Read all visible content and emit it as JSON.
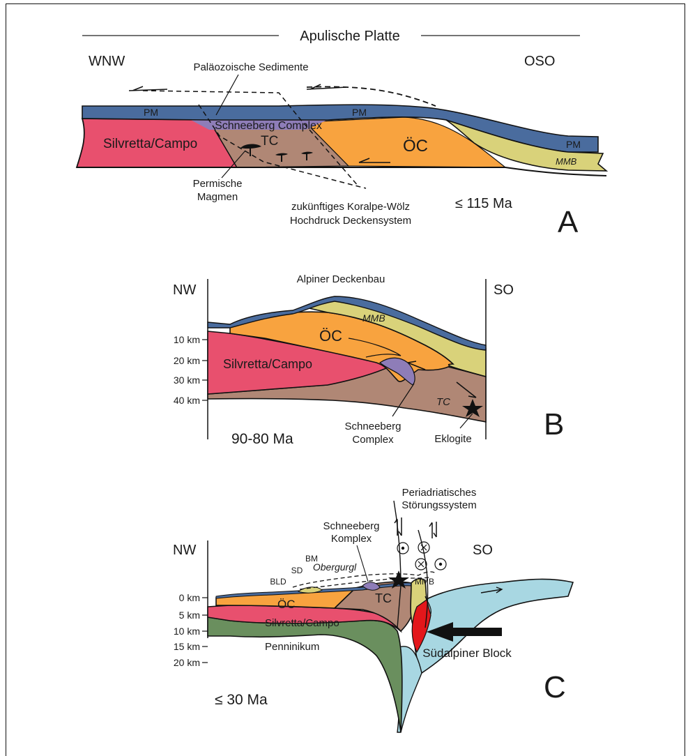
{
  "panel_a": {
    "plate_title": "Apulische Platte",
    "dir_left": "WNW",
    "dir_right": "OSO",
    "lbl_paleozoic": "Paläozoische Sedimente",
    "lbl_pm_left": "PM",
    "lbl_pm_mid": "PM",
    "lbl_pm_right": "PM",
    "lbl_schneeberg": "Schneeberg Complex",
    "lbl_silvretta": "Silvretta/Campo",
    "lbl_tc": "TC",
    "lbl_oc": "ÖC",
    "lbl_mmb": "MMB",
    "lbl_permische_1": "Permische",
    "lbl_permische_2": "Magmen",
    "lbl_future_1": "zukünftiges Koralpe-Wölz",
    "lbl_future_2": "Hochdruck Deckensystem",
    "age": "≤ 115 Ma",
    "letter": "A"
  },
  "panel_b": {
    "title": "Alpiner Deckenbau",
    "dir_left": "NW",
    "dir_right": "SO",
    "depths": [
      "10 km",
      "20 km",
      "30 km",
      "40 km"
    ],
    "lbl_mmb": "MMB",
    "lbl_oc": "ÖC",
    "lbl_silvretta": "Silvretta/Campo",
    "lbl_tc": "TC",
    "lbl_schneeberg_1": "Schneeberg",
    "lbl_schneeberg_2": "Complex",
    "lbl_eklogite": "Eklogite",
    "age": "90-80 Ma",
    "letter": "B"
  },
  "panel_c": {
    "dir_left": "NW",
    "dir_right": "SO",
    "depths": [
      "0 km",
      "5 km",
      "10 km",
      "15 km",
      "20 km"
    ],
    "lbl_periadriatic_1": "Periadriatisches",
    "lbl_periadriatic_2": "Störungssystem",
    "lbl_schneeberg_1": "Schneeberg",
    "lbl_schneeberg_2": "Komplex",
    "lbl_bm": "BM",
    "lbl_sd": "SD",
    "lbl_bld": "BLD",
    "lbl_obergurgl": "Obergurgl",
    "lbl_mmb": "MMB",
    "lbl_oc": "ÖC",
    "lbl_tc": "TC",
    "lbl_silvretta": "Silvretta/Campo",
    "lbl_penninikum": "Penninikum",
    "lbl_suedalpin": "Südalpiner Block",
    "age": "≤ 30 Ma",
    "letter": "C"
  },
  "colors": {
    "silvretta": "#e8506e",
    "oc": "#f8a33f",
    "tc": "#b08775",
    "pm": "#4a6c9e",
    "schneeberg": "#8e7db8",
    "mmb": "#d9d27a",
    "penninikum": "#6a8f5e",
    "suedalpin": "#a8d7e2",
    "red_body": "#e3171b"
  }
}
